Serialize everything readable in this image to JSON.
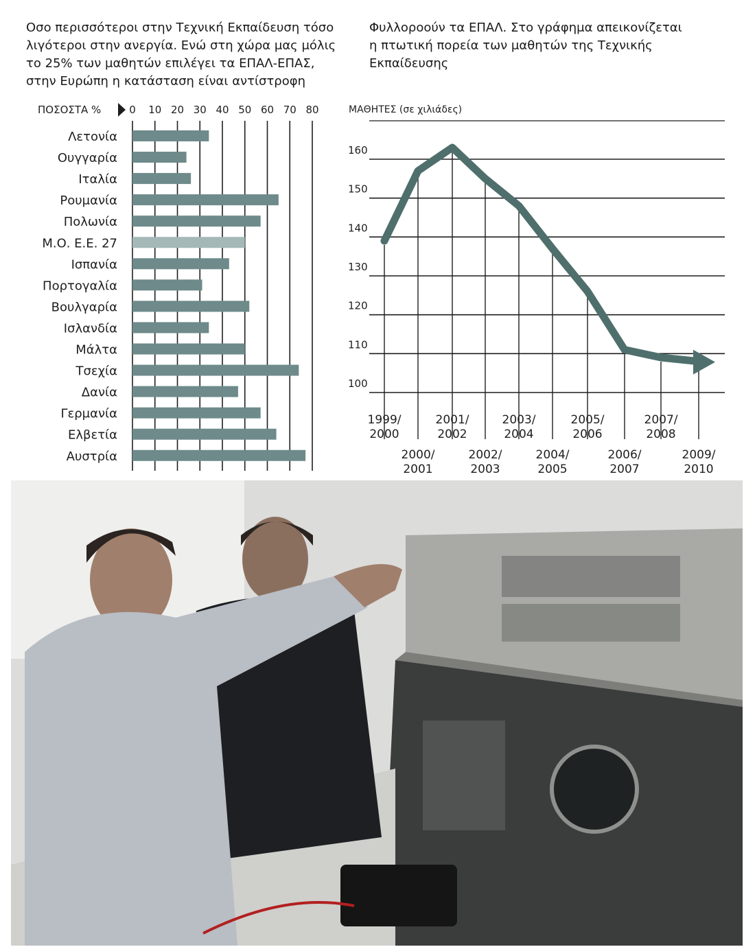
{
  "captions": {
    "left_lines": [
      "Οσο περισσότεροι στην Τεχνική Εκπαίδευση τόσο",
      "λιγότεροι στην ανεργία. Ενώ στη χώρα μας μόλις",
      "το 25% των μαθητών επιλέγει τα ΕΠΑΛ-ΕΠΑΣ,",
      "στην Ευρώπη η κατάσταση είναι αντίστροφη"
    ],
    "right_lines": [
      "Φυλλοροούν τα ΕΠΑΛ. Στο γράφημα απεικονίζεται",
      "η πτωτική πορεία των μαθητών της Τεχνικής",
      "Εκπαίδευσης"
    ]
  },
  "colors": {
    "bar": "#6e8a8a",
    "bar_highlight": "#a4b8b8",
    "line": "#4f6f6d",
    "grid": "#1e1e1e",
    "text": "#1e1e1e"
  },
  "chart_data": [
    {
      "type": "bar",
      "orientation": "horizontal",
      "xlabel": "ΠΟΣΟΣΤΑ %",
      "xlim": [
        0,
        80
      ],
      "xticks": [
        0,
        10,
        20,
        30,
        40,
        50,
        60,
        70,
        80
      ],
      "xticks_labels": [
        "0",
        "10",
        "20",
        "30",
        "40",
        "50",
        "60",
        "70",
        "80"
      ],
      "categories": [
        "Λετονία",
        "Ουγγαρία",
        "Ιταλία",
        "Ρουμανία",
        "Πολωνία",
        "Μ.Ο. Ε.Ε. 27",
        "Ισπανία",
        "Πορτογαλία",
        "Βουλγαρία",
        "Ισλανδία",
        "Μάλτα",
        "Τσεχία",
        "Δανία",
        "Γερμανία",
        "Ελβετία",
        "Αυστρία"
      ],
      "values": [
        34,
        24,
        26,
        65,
        57,
        50,
        43,
        31,
        52,
        34,
        50,
        74,
        47,
        57,
        64,
        77
      ],
      "highlight_index": 5,
      "grid": true
    },
    {
      "type": "line",
      "ylabel": "ΜΑΘΗΤΕΣ (σε χιλιάδες)",
      "ylim": [
        100,
        170
      ],
      "yticks": [
        100,
        110,
        120,
        130,
        140,
        150,
        160
      ],
      "yticks_labels": [
        "100",
        "110",
        "120",
        "130",
        "140",
        "150",
        "160"
      ],
      "categories": [
        "1999/2000",
        "2000/2001",
        "2001/2002",
        "2002/2003",
        "2003/2004",
        "2004/2005",
        "2005/2006",
        "2006/2007",
        "2007/2008",
        "2009/2010"
      ],
      "category_label_lines": [
        [
          "1999/",
          "2000"
        ],
        [
          "2000/",
          "2001"
        ],
        [
          "2001/",
          "2002"
        ],
        [
          "2002/",
          "2003"
        ],
        [
          "2003/",
          "2004"
        ],
        [
          "2004/",
          "2005"
        ],
        [
          "2005/",
          "2006"
        ],
        [
          "2006/",
          "2007"
        ],
        [
          "2007/",
          "2008"
        ],
        [
          "2009/",
          "2010"
        ]
      ],
      "values": [
        139,
        157,
        163,
        155,
        148,
        137,
        126,
        111,
        109,
        108
      ],
      "trend_arrow": true,
      "grid": true
    }
  ]
}
